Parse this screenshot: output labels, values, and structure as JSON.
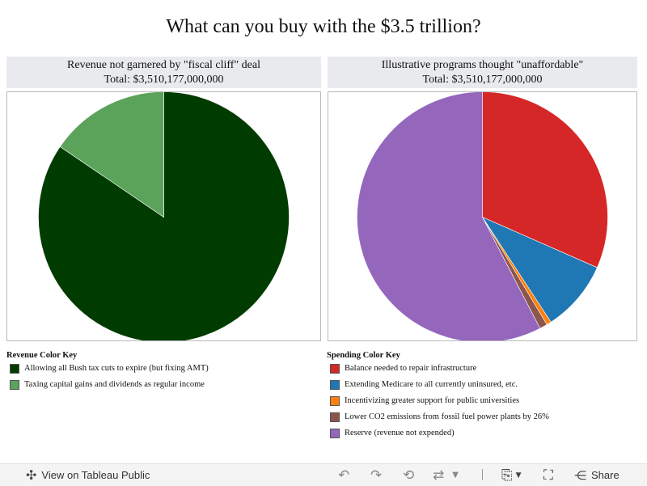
{
  "title": "What can you buy with the $3.5 trillion?",
  "chart_data": [
    {
      "type": "pie",
      "title": "Revenue not garnered by \"fiscal cliff\" deal",
      "subtitle": "Total: $3,510,177,000,000",
      "legend_title": "Revenue Color Key",
      "start_angle_deg": 0,
      "direction": "clockwise",
      "slices": [
        {
          "label": "Allowing all Bush tax cuts to expire (but fixing AMT)",
          "value": 84.5,
          "color": "#003c00"
        },
        {
          "label": "Taxing capital gains and dividends as regular income",
          "value": 15.5,
          "color": "#5ba35a"
        }
      ]
    },
    {
      "type": "pie",
      "title": "Illustrative programs thought \"unaffordable\"",
      "subtitle": "Total: $3,510,177,000,000",
      "legend_title": "Spending Color Key",
      "start_angle_deg": 0,
      "direction": "clockwise",
      "slices": [
        {
          "label": "Balance needed to repair infrastructure",
          "value": 31.6,
          "color": "#d62728"
        },
        {
          "label": "Extending Medicare to all currently uninsured, etc.",
          "value": 9.2,
          "color": "#1f77b4"
        },
        {
          "label": "Incentivizing greater support for public universities",
          "value": 0.6,
          "color": "#ff7f0e"
        },
        {
          "label": "Lower CO2 emissions from fossil fuel power plants by 26%",
          "value": 1.0,
          "color": "#8c564b"
        },
        {
          "label": "Reserve (revenue not expended)",
          "value": 57.6,
          "color": "#9467bd"
        }
      ]
    }
  ],
  "toolbar": {
    "view_label": "View on Tableau Public",
    "share_label": "Share",
    "icons": [
      "tableau-logo-icon",
      "undo-icon",
      "redo-icon",
      "revert-icon",
      "refresh-icon",
      "dropdown-caret-icon",
      "download-icon",
      "fullscreen-icon",
      "share-icon"
    ]
  }
}
